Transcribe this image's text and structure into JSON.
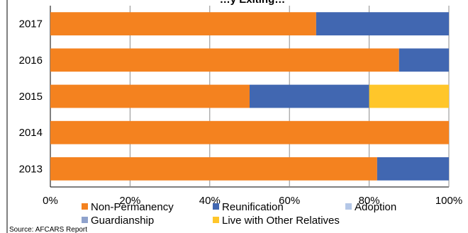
{
  "chart_data": {
    "type": "bar",
    "orientation": "horizontal",
    "stacked": true,
    "title": "…y Exiting…",
    "categories": [
      "2013",
      "2014",
      "2015",
      "2016",
      "2017"
    ],
    "series": [
      {
        "name": "Non-Permanency",
        "color": "#F4821F",
        "values": [
          82,
          100,
          50,
          87.5,
          66.7
        ]
      },
      {
        "name": "Reunification",
        "color": "#4167B1",
        "values": [
          18,
          0,
          30,
          12.5,
          33.3
        ]
      },
      {
        "name": "Adoption",
        "color": "#B4C7E7",
        "values": [
          0,
          0,
          0,
          0,
          0
        ]
      },
      {
        "name": "Guardianship",
        "color": "#8FA2CC",
        "values": [
          0,
          0,
          0,
          0,
          0
        ]
      },
      {
        "name": "Live with Other Relatives",
        "color": "#FFC62A",
        "values": [
          0,
          0,
          20,
          0,
          0
        ]
      }
    ],
    "x_ticks": [
      "0%",
      "20%",
      "40%",
      "60%",
      "80%",
      "100%"
    ],
    "xlim": [
      0,
      100
    ],
    "grid": true,
    "legend_position": "bottom"
  },
  "source_note": "Source: AFCARS Report"
}
